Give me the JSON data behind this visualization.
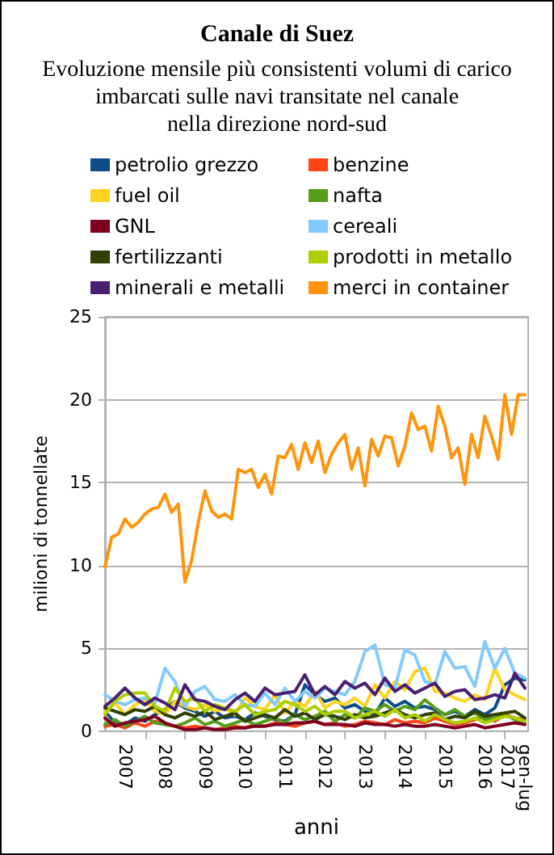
{
  "chart_data": {
    "type": "line",
    "title": "Canale di Suez",
    "subtitle": "Evoluzione mensile più consistenti volumi di carico\nimbarcati sulle navi transitate nel canale\nnella direzione nord-sud",
    "xlabel": "anni",
    "ylabel": "milioni di tonnellate",
    "xlim": [
      2007,
      2017.583
    ],
    "ylim": [
      0,
      25
    ],
    "yticks": [
      0,
      5,
      10,
      15,
      20,
      25
    ],
    "xticks": [
      {
        "value": 2007.5,
        "label": "2007"
      },
      {
        "value": 2008.5,
        "label": "2008"
      },
      {
        "value": 2009.5,
        "label": "2009"
      },
      {
        "value": 2010.5,
        "label": "2010"
      },
      {
        "value": 2011.5,
        "label": "2011"
      },
      {
        "value": 2012.5,
        "label": "2012"
      },
      {
        "value": 2013.5,
        "label": "2013"
      },
      {
        "value": 2014.5,
        "label": "2014"
      },
      {
        "value": 2015.5,
        "label": "2015"
      },
      {
        "value": 2016.5,
        "label": "2016"
      },
      {
        "value": 2017.29,
        "label": "gen-lug\n2017"
      },
      {
        "value": 2008,
        "label": null
      },
      {
        "value": 2009,
        "label": null
      },
      {
        "value": 2010,
        "label": null
      },
      {
        "value": 2011,
        "label": null
      },
      {
        "value": 2012,
        "label": null
      },
      {
        "value": 2013,
        "label": null
      },
      {
        "value": 2014,
        "label": null
      },
      {
        "value": 2015,
        "label": null
      },
      {
        "value": 2016,
        "label": null
      },
      {
        "value": 2017,
        "label": null
      }
    ],
    "grid": "y",
    "legend": "top",
    "marker": "none",
    "line_style": "solid",
    "x": [
      2007,
      2007.25,
      2007.5,
      2007.75,
      2008,
      2008.25,
      2008.5,
      2008.75,
      2009,
      2009.25,
      2009.5,
      2009.75,
      2010,
      2010.25,
      2010.5,
      2010.75,
      2011,
      2011.25,
      2011.5,
      2011.75,
      2012,
      2012.25,
      2012.5,
      2012.75,
      2013,
      2013.25,
      2013.5,
      2013.75,
      2014,
      2014.25,
      2014.5,
      2014.75,
      2015,
      2015.25,
      2015.5,
      2015.75,
      2016,
      2016.25,
      2016.5,
      2016.75,
      2017,
      2017.25,
      2017.5
    ],
    "series": [
      {
        "name": "petrolio grezzo",
        "color": "#0f4c8a",
        "values": [
          1.2,
          0.5,
          0.4,
          0.8,
          0.6,
          1.0,
          1.3,
          1.8,
          1.4,
          1.2,
          0.9,
          1.2,
          0.8,
          0.9,
          0.7,
          1.1,
          0.9,
          0.7,
          0.6,
          1.0,
          2.8,
          2.2,
          1.8,
          2.0,
          1.4,
          1.6,
          1.2,
          1.0,
          2.0,
          1.5,
          1.8,
          1.4,
          1.5,
          1.3,
          1.0,
          1.2,
          0.9,
          1.3,
          1.0,
          1.4,
          2.8,
          3.2,
          3.1
        ]
      },
      {
        "name": "benzine",
        "color": "#ff4418",
        "values": [
          0.3,
          0.4,
          0.2,
          0.5,
          0.3,
          0.6,
          0.4,
          0.3,
          0.2,
          0.3,
          0.2,
          0.1,
          0.2,
          0.3,
          0.2,
          0.4,
          0.3,
          0.5,
          0.4,
          0.3,
          0.5,
          0.6,
          0.4,
          0.5,
          0.3,
          0.4,
          0.6,
          0.5,
          0.4,
          0.7,
          0.5,
          0.6,
          0.5,
          0.8,
          0.6,
          0.4,
          0.5,
          0.7,
          0.9,
          0.6,
          1.0,
          0.8,
          0.7
        ]
      },
      {
        "name": "fuel oil",
        "color": "#ffd320",
        "values": [
          1.2,
          1.7,
          1.0,
          1.6,
          1.9,
          1.2,
          1.0,
          1.8,
          1.5,
          1.3,
          1.6,
          1.2,
          1.4,
          1.0,
          2.0,
          1.5,
          1.3,
          2.2,
          1.1,
          1.8,
          1.5,
          2.4,
          1.4,
          1.8,
          1.6,
          2.0,
          1.5,
          2.8,
          2.0,
          3.0,
          2.5,
          3.6,
          3.8,
          2.4,
          2.3,
          2.0,
          1.8,
          2.2,
          1.9,
          3.8,
          2.5,
          2.2,
          1.9
        ]
      },
      {
        "name": "nafta",
        "color": "#579d1c",
        "values": [
          0.4,
          0.7,
          0.3,
          0.6,
          0.9,
          0.5,
          0.4,
          0.3,
          0.5,
          0.8,
          0.4,
          0.6,
          0.3,
          0.5,
          0.7,
          0.4,
          0.6,
          0.8,
          0.5,
          1.0,
          0.7,
          0.9,
          1.2,
          0.6,
          1.0,
          0.8,
          1.4,
          1.2,
          1.6,
          1.2,
          1.5,
          1.3,
          1.9,
          1.4,
          1.0,
          1.3,
          0.9,
          1.1,
          0.7,
          0.8,
          1.0,
          0.7,
          0.5
        ]
      },
      {
        "name": "GNL",
        "color": "#7e0021",
        "values": [
          0.8,
          0.3,
          0.5,
          0.6,
          0.7,
          0.9,
          0.5,
          0.3,
          0.1,
          0.1,
          0.2,
          0.1,
          0.1,
          0.2,
          0.2,
          0.3,
          0.3,
          0.4,
          0.4,
          0.5,
          0.5,
          0.6,
          0.4,
          0.4,
          0.4,
          0.3,
          0.5,
          0.4,
          0.4,
          0.3,
          0.4,
          0.3,
          0.3,
          0.4,
          0.3,
          0.2,
          0.3,
          0.4,
          0.2,
          0.3,
          0.4,
          0.5,
          0.4
        ]
      },
      {
        "name": "cereali",
        "color": "#83caff",
        "values": [
          2.2,
          1.8,
          1.6,
          1.9,
          2.0,
          1.7,
          3.8,
          3.0,
          1.5,
          2.4,
          2.7,
          1.9,
          1.8,
          2.2,
          1.6,
          1.5,
          2.3,
          1.6,
          2.6,
          1.8,
          2.4,
          2.0,
          2.6,
          2.4,
          2.2,
          3.0,
          4.8,
          5.2,
          2.8,
          2.6,
          4.9,
          4.6,
          3.0,
          2.8,
          4.8,
          3.8,
          3.9,
          2.7,
          5.4,
          3.8,
          5.0,
          3.5,
          3.2
        ]
      },
      {
        "name": "fertilizzanti",
        "color": "#314004",
        "values": [
          1.4,
          1.2,
          1.0,
          1.3,
          1.2,
          1.5,
          1.0,
          0.8,
          1.1,
          0.9,
          1.2,
          0.7,
          0.9,
          1.1,
          0.6,
          0.8,
          1.0,
          0.8,
          1.3,
          0.9,
          1.1,
          0.7,
          1.0,
          0.9,
          0.7,
          1.0,
          0.8,
          0.9,
          1.1,
          1.3,
          1.0,
          0.8,
          1.0,
          1.1,
          0.7,
          0.9,
          0.8,
          1.2,
          0.9,
          1.0,
          1.1,
          1.2,
          0.8
        ]
      },
      {
        "name": "prodotti in metallo",
        "color": "#aecf00",
        "values": [
          1.0,
          1.8,
          2.2,
          2.3,
          2.3,
          1.5,
          1.2,
          2.6,
          1.8,
          2.0,
          1.2,
          1.6,
          1.4,
          1.2,
          1.6,
          1.0,
          1.2,
          1.3,
          1.8,
          1.6,
          1.2,
          1.5,
          1.0,
          1.2,
          1.2,
          0.8,
          1.0,
          1.2,
          0.9,
          1.3,
          0.8,
          1.0,
          0.6,
          1.0,
          0.7,
          0.5,
          0.6,
          0.8,
          0.5,
          0.7,
          0.9,
          0.8,
          0.6
        ]
      },
      {
        "name": "minerali e metalli",
        "color": "#4b1f6f",
        "values": [
          1.5,
          2.0,
          2.6,
          2.0,
          1.6,
          2.0,
          1.7,
          1.3,
          2.8,
          1.9,
          1.8,
          1.5,
          1.3,
          1.9,
          2.3,
          1.8,
          2.6,
          2.2,
          2.3,
          2.4,
          3.4,
          2.2,
          2.7,
          2.2,
          3.0,
          2.6,
          2.9,
          2.2,
          3.2,
          2.4,
          2.8,
          2.3,
          2.6,
          2.9,
          2.1,
          2.4,
          2.5,
          1.9,
          2.0,
          2.2,
          2.0,
          3.5,
          2.6
        ]
      },
      {
        "name": "merci in container",
        "color": "#ff950e",
        "x": [
          2007,
          2007.167,
          2007.333,
          2007.5,
          2007.667,
          2007.833,
          2008,
          2008.167,
          2008.333,
          2008.5,
          2008.667,
          2008.833,
          2009,
          2009.167,
          2009.333,
          2009.5,
          2009.667,
          2009.833,
          2010,
          2010.167,
          2010.333,
          2010.5,
          2010.667,
          2010.833,
          2011,
          2011.167,
          2011.333,
          2011.5,
          2011.667,
          2011.833,
          2012,
          2012.167,
          2012.333,
          2012.5,
          2012.667,
          2012.833,
          2013,
          2013.167,
          2013.333,
          2013.5,
          2013.667,
          2013.833,
          2014,
          2014.167,
          2014.333,
          2014.5,
          2014.667,
          2014.833,
          2015,
          2015.167,
          2015.333,
          2015.5,
          2015.667,
          2015.833,
          2016,
          2016.167,
          2016.333,
          2016.5,
          2016.667,
          2016.833,
          2017,
          2017.167,
          2017.333,
          2017.5
        ],
        "values": [
          9.9,
          11.7,
          11.9,
          12.8,
          12.3,
          12.6,
          13.1,
          13.4,
          13.5,
          14.3,
          13.2,
          13.7,
          9.0,
          10.3,
          12.6,
          14.5,
          13.3,
          12.9,
          13.1,
          12.8,
          15.8,
          15.6,
          15.8,
          14.7,
          15.5,
          14.3,
          16.6,
          16.5,
          17.3,
          15.8,
          17.4,
          16.2,
          17.5,
          15.6,
          16.7,
          17.4,
          17.9,
          15.8,
          17.1,
          14.8,
          17.6,
          16.6,
          17.8,
          17.7,
          16.0,
          17.2,
          19.2,
          18.2,
          18.4,
          16.9,
          19.6,
          18.4,
          16.5,
          17.1,
          14.9,
          17.9,
          16.5,
          19.0,
          17.8,
          16.4,
          20.3,
          17.9,
          20.3,
          20.3
        ]
      }
    ]
  }
}
